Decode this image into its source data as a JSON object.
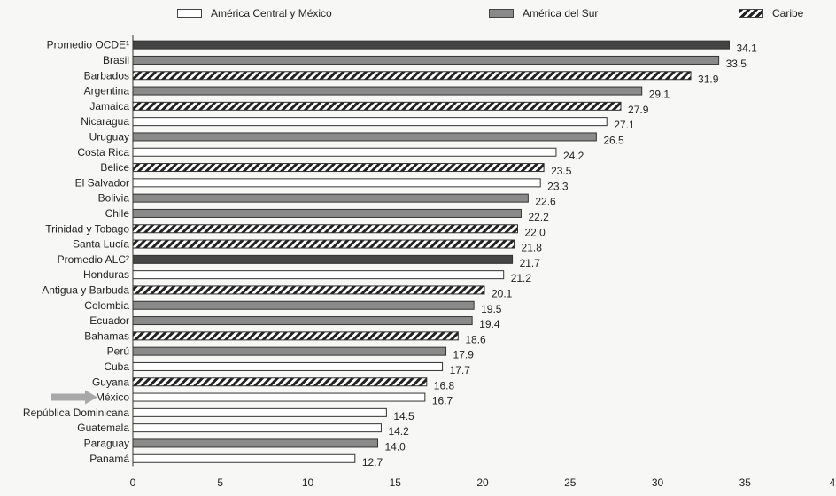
{
  "legend": {
    "central": "América Central y México",
    "sur": "América del Sur",
    "caribe": "Caribe"
  },
  "colors": {
    "central": "#ffffff",
    "sur": "#8a8a8a",
    "caribe": "#222222",
    "promedio": "#444444",
    "arrow": "#9a9a9a"
  },
  "chart_data": {
    "type": "bar",
    "orientation": "horizontal",
    "xlim": [
      0,
      40
    ],
    "xticks": [
      "0",
      "5",
      "10",
      "15",
      "20",
      "25",
      "30",
      "35",
      "4"
    ],
    "grid": false,
    "legend_position": "top",
    "categories": [
      {
        "label": "Promedio OCDE¹",
        "value": 34.1,
        "value_label": "34.1",
        "group": "promedio"
      },
      {
        "label": "Brasil",
        "value": 33.5,
        "value_label": "33.5",
        "group": "sur"
      },
      {
        "label": "Barbados",
        "value": 31.9,
        "value_label": "31.9",
        "group": "caribe"
      },
      {
        "label": "Argentina",
        "value": 29.1,
        "value_label": "29.1",
        "group": "sur"
      },
      {
        "label": "Jamaica",
        "value": 27.9,
        "value_label": "27.9",
        "group": "caribe"
      },
      {
        "label": "Nicaragua",
        "value": 27.1,
        "value_label": "27.1",
        "group": "central"
      },
      {
        "label": "Uruguay",
        "value": 26.5,
        "value_label": "26.5",
        "group": "sur"
      },
      {
        "label": "Costa Rica",
        "value": 24.2,
        "value_label": "24.2",
        "group": "central"
      },
      {
        "label": "Belice",
        "value": 23.5,
        "value_label": "23.5",
        "group": "caribe"
      },
      {
        "label": "El Salvador",
        "value": 23.3,
        "value_label": "23.3",
        "group": "central"
      },
      {
        "label": "Bolivia",
        "value": 22.6,
        "value_label": "22.6",
        "group": "sur"
      },
      {
        "label": "Chile",
        "value": 22.2,
        "value_label": "22.2",
        "group": "sur"
      },
      {
        "label": "Trinidad y Tobago",
        "value": 22.0,
        "value_label": "22.0",
        "group": "caribe"
      },
      {
        "label": "Santa Lucía",
        "value": 21.8,
        "value_label": "21.8",
        "group": "caribe"
      },
      {
        "label": "Promedio ALC²",
        "value": 21.7,
        "value_label": "21.7",
        "group": "promedio"
      },
      {
        "label": "Honduras",
        "value": 21.2,
        "value_label": "21.2",
        "group": "central"
      },
      {
        "label": "Antigua y Barbuda",
        "value": 20.1,
        "value_label": "20.1",
        "group": "caribe"
      },
      {
        "label": "Colombia",
        "value": 19.5,
        "value_label": "19.5",
        "group": "sur"
      },
      {
        "label": "Ecuador",
        "value": 19.4,
        "value_label": "19.4",
        "group": "sur"
      },
      {
        "label": "Bahamas",
        "value": 18.6,
        "value_label": "18.6",
        "group": "caribe"
      },
      {
        "label": "Perú",
        "value": 17.9,
        "value_label": "17.9",
        "group": "sur"
      },
      {
        "label": "Cuba",
        "value": 17.7,
        "value_label": "17.7",
        "group": "central"
      },
      {
        "label": "Guyana",
        "value": 16.8,
        "value_label": "16.8",
        "group": "caribe"
      },
      {
        "label": "México",
        "value": 16.7,
        "value_label": "16.7",
        "group": "central",
        "highlight_arrow": true
      },
      {
        "label": "República Dominicana",
        "value": 14.5,
        "value_label": "14.5",
        "group": "central"
      },
      {
        "label": "Guatemala",
        "value": 14.2,
        "value_label": "14.2",
        "group": "central"
      },
      {
        "label": "Paraguay",
        "value": 14.0,
        "value_label": "14.0",
        "group": "sur"
      },
      {
        "label": "Panamá",
        "value": 12.7,
        "value_label": "12.7",
        "group": "central"
      }
    ]
  }
}
